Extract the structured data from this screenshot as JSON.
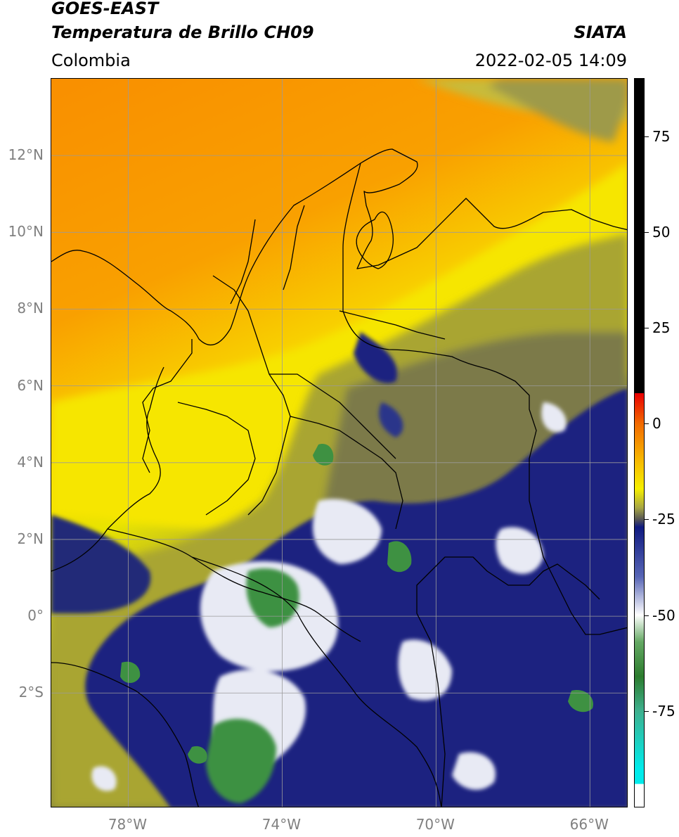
{
  "header": {
    "satellite": "GOES-EAST",
    "product": "Temperatura de Brillo CH09",
    "region": "Colombia",
    "organization": "SIATA",
    "datetime": "2022-02-05 14:09"
  },
  "map": {
    "lon_range": [
      -80,
      -65
    ],
    "lat_range": [
      -5,
      14
    ],
    "lat_ticks": [
      {
        "value": 12,
        "label": "12°N"
      },
      {
        "value": 10,
        "label": "10°N"
      },
      {
        "value": 8,
        "label": "8°N"
      },
      {
        "value": 6,
        "label": "6°N"
      },
      {
        "value": 4,
        "label": "4°N"
      },
      {
        "value": 2,
        "label": "2°N"
      },
      {
        "value": 0,
        "label": "0°"
      },
      {
        "value": -2,
        "label": "2°S"
      }
    ],
    "lon_ticks": [
      {
        "value": -78,
        "label": "78°W"
      },
      {
        "value": -74,
        "label": "74°W"
      },
      {
        "value": -70,
        "label": "70°W"
      },
      {
        "value": -66,
        "label": "66°W"
      }
    ],
    "gridlines": true,
    "colors": {
      "warm": "#f98b00",
      "orange_light": "#f9b000",
      "yellow": "#f5e700",
      "olive": "#a9a533",
      "olive_dark": "#6f6f47",
      "navy": "#1a237a",
      "white": "#f4f4f4",
      "green": "#3e9142",
      "grid": "#9a9a9a",
      "border": "#000000"
    }
  },
  "colorbar": {
    "range": [
      -100,
      90
    ],
    "ticks": [
      {
        "value": 75,
        "label": "75"
      },
      {
        "value": 50,
        "label": "50"
      },
      {
        "value": 25,
        "label": "25"
      },
      {
        "value": 0,
        "label": "0"
      },
      {
        "value": -25,
        "label": "-25"
      },
      {
        "value": -50,
        "label": "-50"
      },
      {
        "value": -75,
        "label": "-75"
      }
    ],
    "stops": [
      {
        "value": 90,
        "color": "#000000"
      },
      {
        "value": 8,
        "color": "#000000"
      },
      {
        "value": 7.9,
        "color": "#e80000"
      },
      {
        "value": 0,
        "color": "#f26a00"
      },
      {
        "value": -10,
        "color": "#f7bc00"
      },
      {
        "value": -17,
        "color": "#f6ef00"
      },
      {
        "value": -22,
        "color": "#a6a545"
      },
      {
        "value": -25,
        "color": "#555555"
      },
      {
        "value": -27,
        "color": "#0f1a80"
      },
      {
        "value": -40,
        "color": "#5866b6"
      },
      {
        "value": -50,
        "color": "#ffffff"
      },
      {
        "value": -57,
        "color": "#64a863"
      },
      {
        "value": -66,
        "color": "#2c7c2e"
      },
      {
        "value": -75,
        "color": "#3eb08e"
      },
      {
        "value": -90,
        "color": "#00ebeb"
      },
      {
        "value": -94,
        "color": "#00ebeb"
      },
      {
        "value": -94.1,
        "color": "#ffffff"
      },
      {
        "value": -100,
        "color": "#ffffff"
      }
    ]
  }
}
